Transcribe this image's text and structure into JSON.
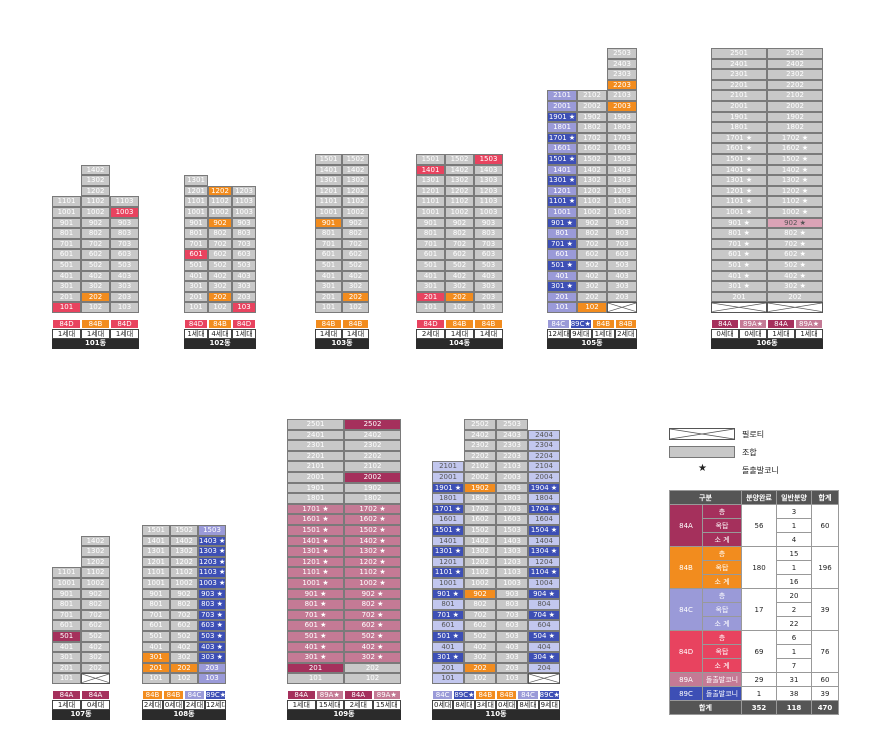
{
  "colors": {
    "union": "#c8c8c8",
    "sale": "#f28c1e",
    "84A": "#a5305c",
    "84B": "#f28c1e",
    "84C": "#9a9ad8",
    "84D": "#e8435f",
    "89A": "#c47a95",
    "89A_light": "#dba3b6",
    "89C": "#3d4fb5",
    "89C_light": "#c2c7ee",
    "dark": "#2b2b2b"
  },
  "buildings": [
    {
      "name": "101동",
      "cols": 3,
      "floors": 14,
      "missing": [
        "1401",
        "1403",
        "1301",
        "1303",
        "1201",
        "1203"
      ],
      "sale": {
        "101": "84D",
        "202": "84B",
        "1003": "84D",
        "301": "84D"
      },
      "types": [
        "84D",
        "84B",
        "84D"
      ],
      "counts": [
        "1세대",
        "1세대",
        "1세대"
      ]
    },
    {
      "name": "102동",
      "cols": 3,
      "floors": 13,
      "missing": [
        "1302",
        "1303"
      ],
      "sale": {
        "103": "84D",
        "202": "84B",
        "601": "84D",
        "902": "84B",
        "1202": "84B"
      },
      "types": [
        "84D",
        "84B",
        "84D"
      ],
      "counts": [
        "1세대",
        "4세대",
        "1세대"
      ]
    },
    {
      "name": "103동",
      "cols": 2,
      "floors": 15,
      "sale": {
        "202": "84B",
        "901": "84B"
      },
      "types": [
        "84B",
        "84B"
      ],
      "counts": [
        "1세대",
        "1세대"
      ]
    },
    {
      "name": "104동",
      "cols": 3,
      "floors": 15,
      "sale": {
        "201": "84D",
        "202": "84B",
        "1401": "84D",
        "1503": "84D"
      },
      "types": [
        "84D",
        "84B",
        "84B"
      ],
      "counts": [
        "2세대",
        "1세대",
        "1세대"
      ]
    },
    {
      "name": "105동",
      "cols": 3,
      "floors": 25,
      "missing": [
        "2101x"
      ],
      "sale": {
        "102": "84B",
        "2003": "84B",
        "2203": "84B"
      },
      "types": [
        "84C",
        "89C★",
        "84B",
        "84B"
      ],
      "counts": [
        "12세대",
        "9세대",
        "1세대",
        "2세대"
      ]
    },
    {
      "name": "106동",
      "cols": 2,
      "floors": 25,
      "types": [
        "84A",
        "89A★",
        "84A",
        "89A★"
      ],
      "counts": [
        "0세대",
        "0세대",
        "1세대",
        "1세대"
      ]
    },
    {
      "name": "107동",
      "cols": 2,
      "floors": 14,
      "types": [
        "84A",
        "84A"
      ],
      "counts": [
        "1세대",
        "0세대"
      ]
    },
    {
      "name": "108동",
      "cols": 3,
      "floors": 15,
      "types": [
        "84B",
        "84B",
        "84C",
        "89C★"
      ],
      "counts": [
        "2세대",
        "0세대",
        "2세대",
        "12세대"
      ]
    },
    {
      "name": "109동",
      "cols": 2,
      "floors": 25,
      "types": [
        "84A",
        "89A★",
        "84A",
        "89A★"
      ],
      "counts": [
        "1세대",
        "15세대",
        "2세대",
        "15세대"
      ]
    },
    {
      "name": "110동",
      "cols": 4,
      "floors": 25,
      "types": [
        "84C",
        "89C★",
        "84B",
        "84B",
        "84C",
        "89C★"
      ],
      "counts": [
        "0세대",
        "8세대",
        "3세대",
        "0세대",
        "8세대",
        "9세대"
      ]
    }
  ],
  "legend": {
    "piloti": "필로티",
    "union": "조합",
    "balcony": "돌출발코니"
  },
  "table": {
    "headers": [
      "구분",
      "분양완료",
      "일반분양",
      "합계"
    ],
    "rows": [
      {
        "type": "84A",
        "sub": [
          "층",
          "옥탑",
          "소 계"
        ],
        "done": "56",
        "general": [
          "3",
          "1",
          "4"
        ],
        "total": "60"
      },
      {
        "type": "84B",
        "sub": [
          "층",
          "옥탑",
          "소 계"
        ],
        "done": "180",
        "general": [
          "15",
          "1",
          "16"
        ],
        "total": "196"
      },
      {
        "type": "84C",
        "sub": [
          "층",
          "옥탑",
          "소 계"
        ],
        "done": "17",
        "general": [
          "20",
          "2",
          "22"
        ],
        "total": "39"
      },
      {
        "type": "84D",
        "sub": [
          "층",
          "옥탑",
          "소 계"
        ],
        "done": "69",
        "general": [
          "6",
          "1",
          "7"
        ],
        "total": "76"
      },
      {
        "type": "89A",
        "sub": [
          "돌출발코니"
        ],
        "done": "29",
        "general": [
          "31"
        ],
        "total": "60"
      },
      {
        "type": "89C",
        "sub": [
          "돌출발코니"
        ],
        "done": "1",
        "general": [
          "38"
        ],
        "total": "39"
      }
    ],
    "sum": {
      "label": "합계",
      "done": "352",
      "general": "118",
      "total": "470"
    }
  }
}
